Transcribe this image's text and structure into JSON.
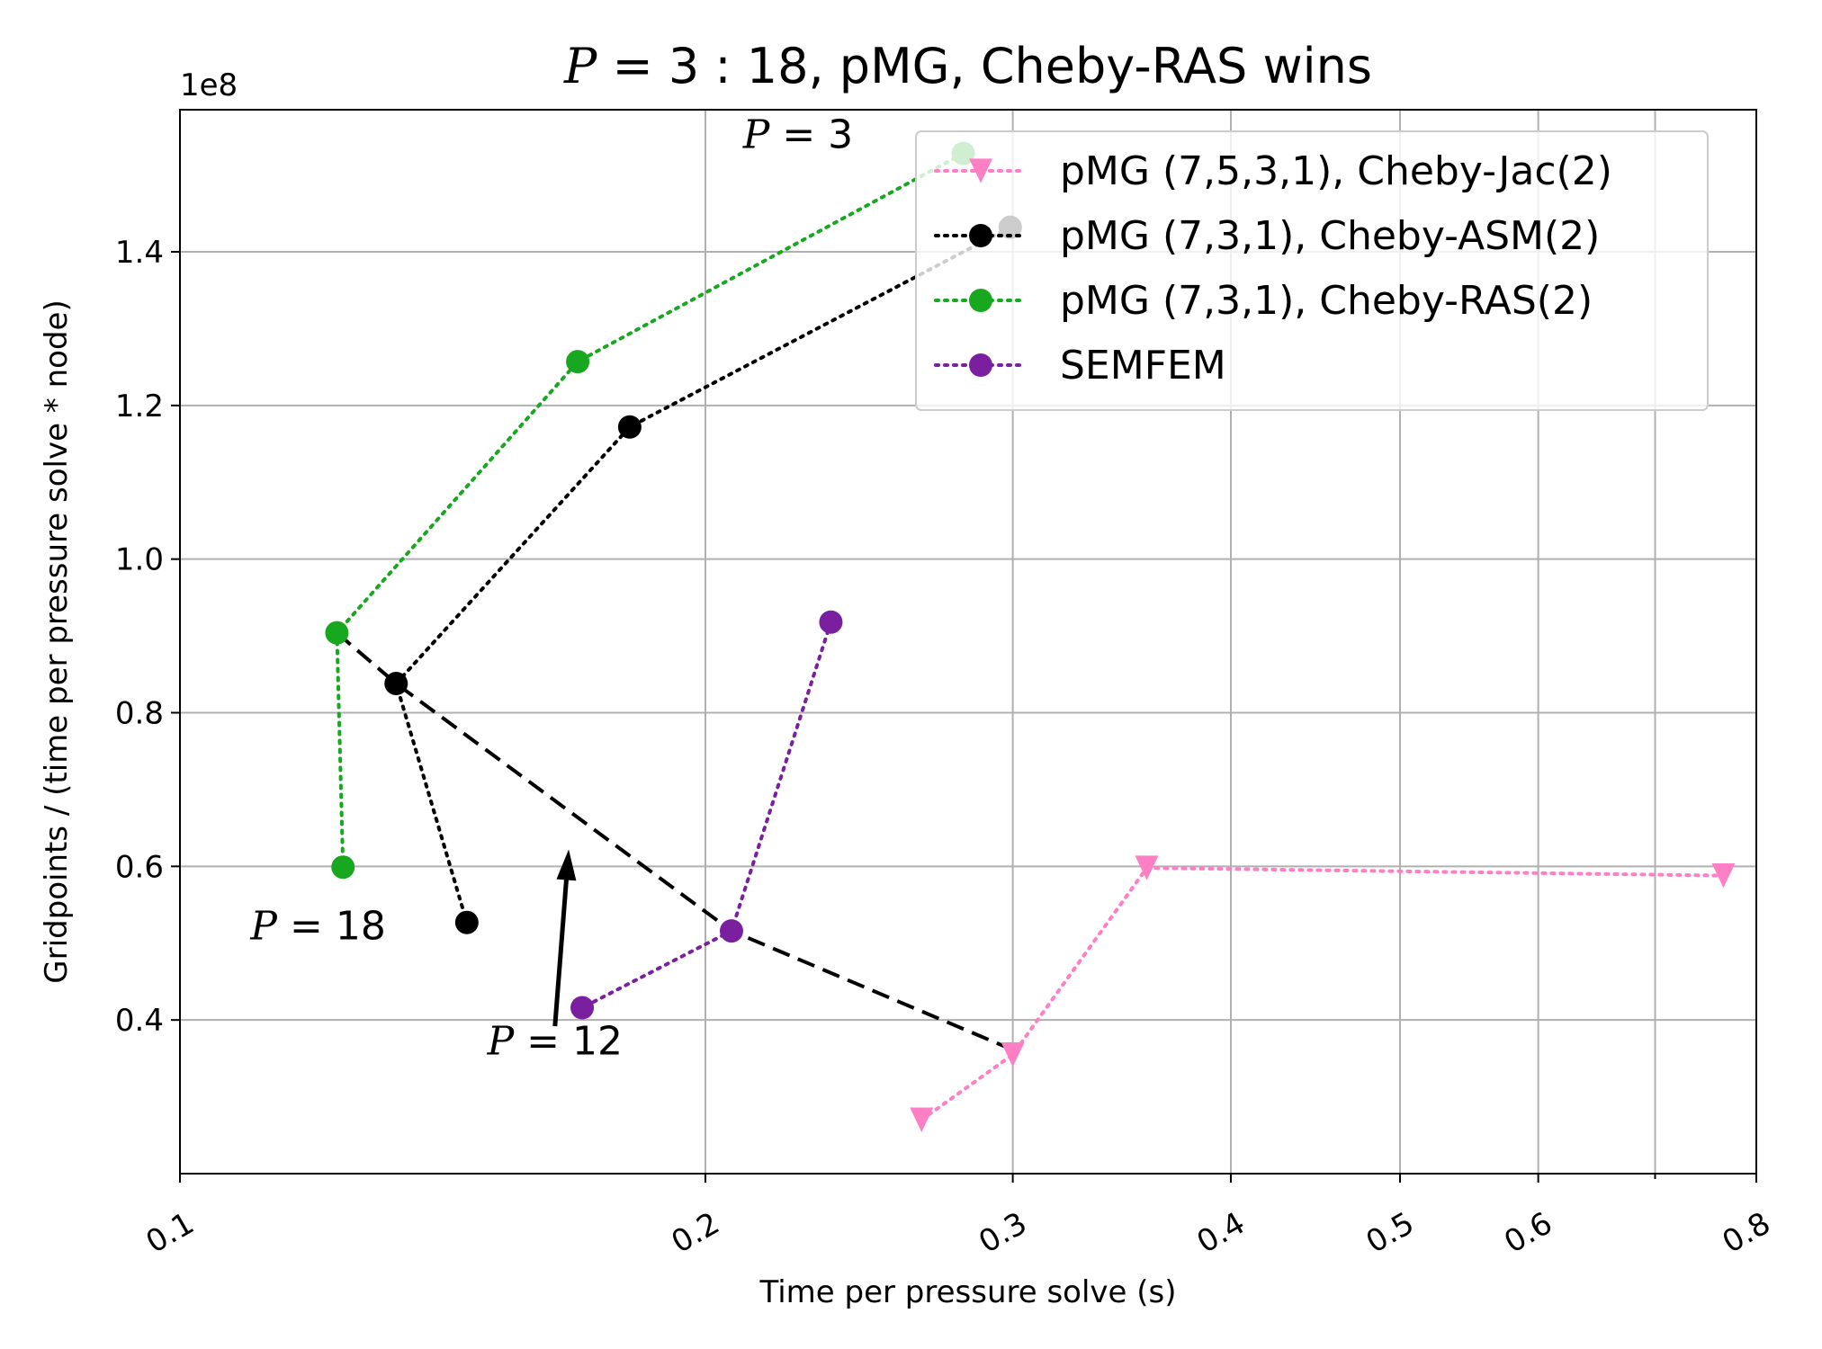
{
  "chart_data": {
    "type": "scatter",
    "title": "P = 3 : 18, pMG, Cheby-RAS wins",
    "xlabel": "Time per pressure solve (s)",
    "ylabel": "Gridpoints / (time per pressure solve * node)",
    "xscale": "log",
    "yscale": "linear",
    "y_multiplier_label": "1e8",
    "xlim": [
      0.1,
      0.8
    ],
    "ylim": [
      0.2,
      1.585
    ],
    "xticks": [
      0.1,
      0.2,
      0.3,
      0.4,
      0.5,
      0.6,
      0.8
    ],
    "xtick_labels": [
      "0.1",
      "0.2",
      "0.3",
      "0.4",
      "0.5",
      "0.6",
      "0.8"
    ],
    "xticks_minor": [
      0.7
    ],
    "yticks": [
      0.4,
      0.6,
      0.8,
      1.0,
      1.2,
      1.4
    ],
    "ytick_labels": [
      "0.4",
      "0.6",
      "0.8",
      "1.0",
      "1.2",
      "1.4"
    ],
    "grid": true,
    "legend_position": "top-right",
    "series": [
      {
        "name": "pMG (7,5,3,1), Cheby-Jac(2)",
        "color": "#ff7fc5",
        "marker": "triangle-down",
        "linestyle": "dotted",
        "x": [
          0.266,
          0.3,
          0.358,
          0.766
        ],
        "y": [
          0.27,
          0.355,
          0.598,
          0.588
        ]
      },
      {
        "name": "pMG (7,3,1), Cheby-ASM(2)",
        "color": "#000000",
        "marker": "circle",
        "linestyle": "dotted",
        "x": [
          0.299,
          0.181,
          0.133,
          0.146
        ],
        "y": [
          1.432,
          1.172,
          0.838,
          0.527
        ]
      },
      {
        "name": "pMG (7,3,1), Cheby-RAS(2)",
        "color": "#17a81f",
        "marker": "circle",
        "linestyle": "dotted",
        "x": [
          0.281,
          0.169,
          0.123,
          0.124
        ],
        "y": [
          1.528,
          1.257,
          0.904,
          0.599
        ]
      },
      {
        "name": "SEMFEM",
        "color": "#7a1fa0",
        "marker": "circle",
        "linestyle": "dotted",
        "x": [
          0.236,
          0.207,
          0.17
        ],
        "y": [
          0.918,
          0.516,
          0.416
        ]
      }
    ],
    "trend_line": {
      "style": "dashed",
      "color": "#000000",
      "x": [
        0.123,
        0.133,
        0.207,
        0.303
      ],
      "y": [
        0.904,
        0.838,
        0.516,
        0.357
      ]
    },
    "annotations": [
      {
        "text": "P = 3",
        "x": 0.226,
        "y": 1.535
      },
      {
        "text": "P = 18",
        "x": 0.12,
        "y": 0.505
      },
      {
        "text": "P = 12",
        "x": 0.164,
        "y": 0.355,
        "arrow_to": {
          "x": 0.167,
          "y": 0.622
        },
        "arrow_from": {
          "x": 0.164,
          "y": 0.392
        }
      }
    ]
  }
}
